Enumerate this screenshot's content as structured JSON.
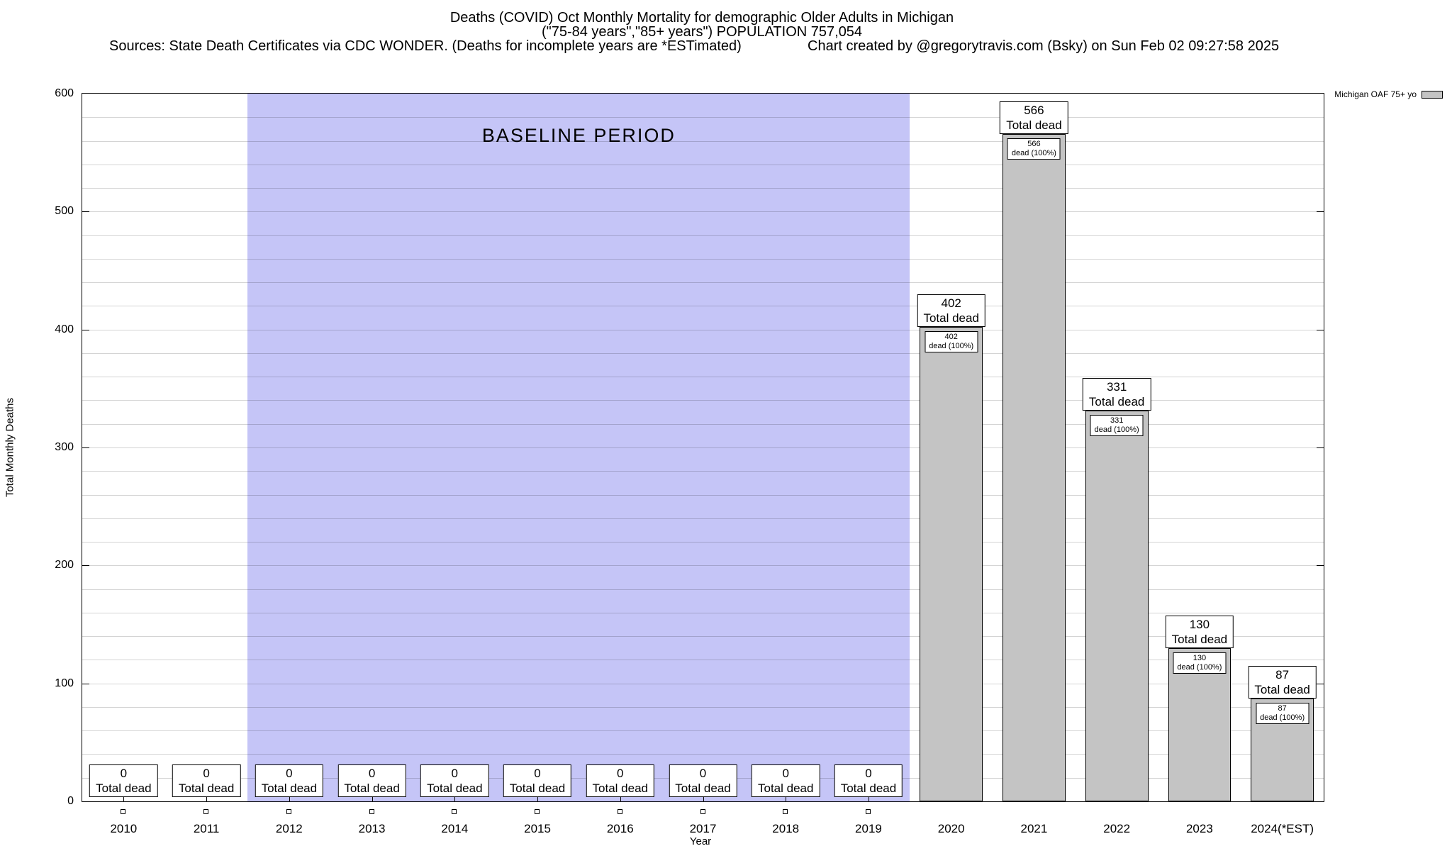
{
  "header": {
    "title": "Deaths (COVID) Oct Monthly Mortality for demographic Older Adults in Michigan",
    "subtitle": "(\"75-84 years\",\"85+ years\") POPULATION 757,054",
    "sources": "Sources: State Death Certificates via CDC WONDER. (Deaths for incomplete years are *ESTimated)",
    "credit": "Chart created by @gregorytravis.com (Bsky) on Sun Feb 02 09:27:58 2025"
  },
  "legend": {
    "label": "Michigan OAF 75+ yo"
  },
  "chart_data": {
    "type": "bar",
    "title": "Deaths (COVID) Oct Monthly Mortality for demographic Older Adults in Michigan",
    "subtitle": "(\"75-84 years\",\"85+ years\") POPULATION 757,054",
    "xlabel": "Year",
    "ylabel": "Total Monthly Deaths",
    "ylim": [
      0,
      600
    ],
    "ytick_step": 100,
    "minor_grid_step": 20,
    "grid": true,
    "legend_position": "top-right",
    "series_name": "Michigan OAF 75+ yo",
    "bar_color": "#c4c4c4",
    "bar_border_color": "#000000",
    "categories": [
      "2010",
      "2011",
      "2012",
      "2013",
      "2014",
      "2015",
      "2016",
      "2017",
      "2018",
      "2019",
      "2020",
      "2021",
      "2022",
      "2023",
      "2024(*EST)"
    ],
    "values": [
      0,
      0,
      0,
      0,
      0,
      0,
      0,
      0,
      0,
      0,
      402,
      566,
      331,
      130,
      87
    ],
    "bar_value_labels": {
      "total_suffix": "Total dead",
      "inner_suffix": "dead (100%)"
    },
    "baseline_region": {
      "label": "BASELINE PERIOD",
      "from_category": "2012",
      "to_category": "2019",
      "color": "#c5c5f7"
    }
  }
}
